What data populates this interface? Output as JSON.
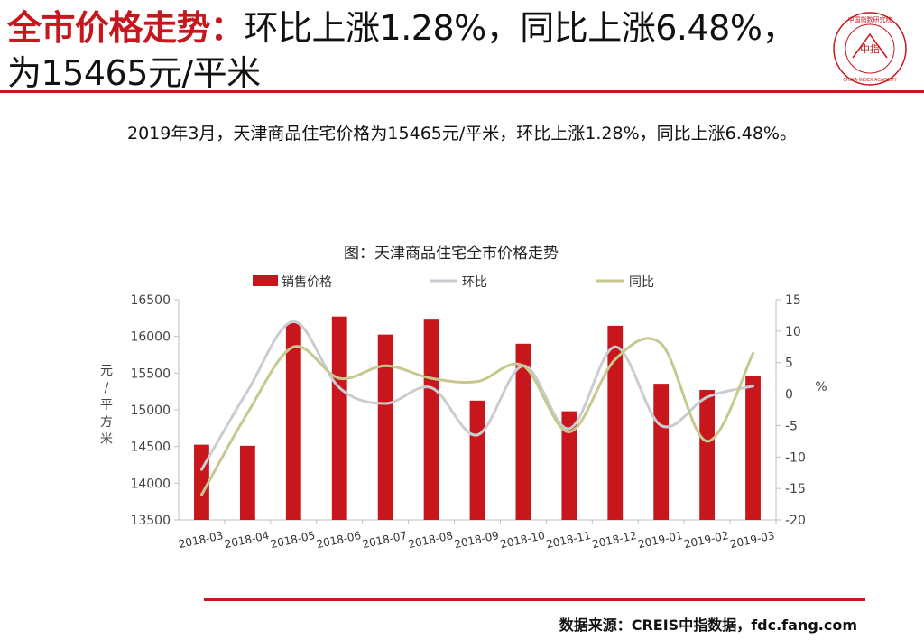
{
  "header": {
    "title_highlight": "全市价格走势：",
    "title_rest": "环比上涨1.28%，同比上涨6.48%，为15465元/平米",
    "logo": {
      "icon": "china-index-academy-seal-icon",
      "seal_text_cn": "中国指数研究院",
      "seal_center": "中指",
      "seal_text_en": "CHINA INDEX ACADEMY"
    }
  },
  "summary": "2019年3月，天津商品住宅价格为15465元/平米，环比上涨1.28%，同比上涨6.48%。",
  "source": "数据来源：CREIS中指数据，fdc.fang.com",
  "colors": {
    "accent": "#c8161d",
    "bar": "#c8161d",
    "mom_line": "#c9cdd2",
    "yoy_line": "#c7c88f"
  },
  "chart_data": {
    "type": "bar",
    "title": "图：天津商品住宅全市价格走势",
    "categories": [
      "2018-03",
      "2018-04",
      "2018-05",
      "2018-06",
      "2018-07",
      "2018-08",
      "2018-09",
      "2018-10",
      "2018-11",
      "2018-12",
      "2019-01",
      "2019-02",
      "2019-03"
    ],
    "ylabel_left": "元/平方米",
    "ylabel_right": "%",
    "ylim_left": [
      13500,
      16500
    ],
    "ylim_right": [
      -20,
      15
    ],
    "yticks_left": [
      13500,
      14000,
      14500,
      15000,
      15500,
      16000,
      16500
    ],
    "yticks_right": [
      -20,
      -15,
      -10,
      -5,
      0,
      5,
      10,
      15
    ],
    "grid": false,
    "legend_position": "top",
    "series": [
      {
        "name": "销售价格",
        "kind": "bar",
        "axis": "left",
        "values": [
          14525,
          14510,
          16180,
          16270,
          16025,
          16240,
          15125,
          15900,
          14980,
          16145,
          15355,
          15270,
          15465
        ]
      },
      {
        "name": "环比",
        "kind": "line",
        "axis": "right",
        "values": [
          -12,
          0.5,
          11.5,
          1.0,
          -1.5,
          1.0,
          -6.5,
          4.5,
          -5.5,
          7.5,
          -5.0,
          -0.5,
          1.28
        ]
      },
      {
        "name": "同比",
        "kind": "line",
        "axis": "right",
        "values": [
          -16,
          -3,
          7.5,
          2.5,
          4.5,
          2.5,
          2.0,
          4.5,
          -6.0,
          5.5,
          8.0,
          -7.5,
          6.48
        ]
      }
    ]
  }
}
